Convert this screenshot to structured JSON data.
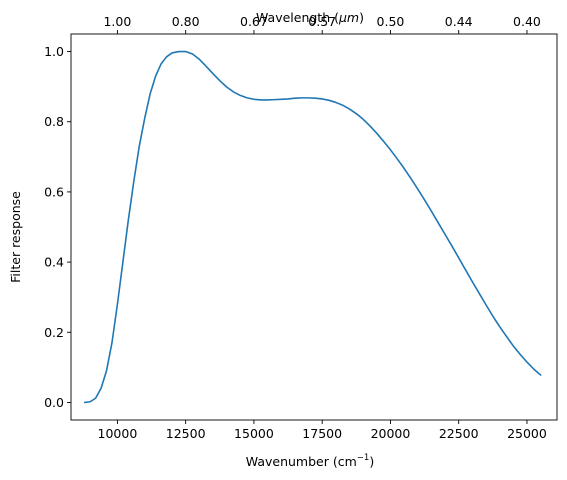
{
  "chart_data": {
    "type": "line",
    "title": "",
    "xlabel": "Wavenumber",
    "xlabel_unit": "(cm",
    "xlabel_unit_sup": "−1",
    "xlabel_unit_close": ")",
    "ylabel": "Filter response",
    "top_xlabel": "Wavelength (",
    "top_xlabel_unit": "μm",
    "top_xlabel_close": ")",
    "xlim": [
      8300,
      26100
    ],
    "ylim": [
      -0.05,
      1.05
    ],
    "xticks": [
      10000,
      12500,
      15000,
      17500,
      20000,
      22500,
      25000
    ],
    "xtick_labels": [
      "10000",
      "12500",
      "15000",
      "17500",
      "20000",
      "22500",
      "25000"
    ],
    "yticks": [
      0.0,
      0.2,
      0.4,
      0.6,
      0.8,
      1.0
    ],
    "ytick_labels": [
      "0.0",
      "0.2",
      "0.4",
      "0.6",
      "0.8",
      "1.0"
    ],
    "top_xticks": [
      10000,
      12500,
      15000,
      17500,
      20000,
      22500,
      25000
    ],
    "top_xtick_labels": [
      "1.00",
      "0.80",
      "0.67",
      "0.57",
      "0.50",
      "0.44",
      "0.40"
    ],
    "grid": false,
    "color": "#1f77b4",
    "series": [
      {
        "x": [
          8800,
          9000,
          9200,
          9400,
          9600,
          9800,
          10000,
          10200,
          10400,
          10600,
          10800,
          11000,
          11200,
          11400,
          11600,
          11800,
          12000,
          12250,
          12500,
          12750,
          13000,
          13250,
          13500,
          13750,
          14000,
          14250,
          14500,
          14750,
          15000,
          15250,
          15500,
          15750,
          16000,
          16250,
          16500,
          16750,
          17000,
          17250,
          17500,
          17750,
          18000,
          18250,
          18500,
          18750,
          19000,
          19250,
          19500,
          19750,
          20000,
          20250,
          20500,
          20750,
          21000,
          21250,
          21500,
          21750,
          22000,
          22250,
          22500,
          22750,
          23000,
          23250,
          23500,
          23750,
          24000,
          24250,
          24500,
          24750,
          25000,
          25250,
          25500
        ],
        "y": [
          0.0,
          0.002,
          0.012,
          0.04,
          0.09,
          0.17,
          0.28,
          0.4,
          0.52,
          0.63,
          0.73,
          0.81,
          0.88,
          0.93,
          0.965,
          0.985,
          0.996,
          1.0,
          1.0,
          0.993,
          0.978,
          0.958,
          0.937,
          0.917,
          0.899,
          0.885,
          0.875,
          0.868,
          0.864,
          0.862,
          0.862,
          0.863,
          0.864,
          0.865,
          0.867,
          0.868,
          0.868,
          0.867,
          0.865,
          0.861,
          0.855,
          0.847,
          0.836,
          0.823,
          0.807,
          0.788,
          0.767,
          0.744,
          0.72,
          0.694,
          0.667,
          0.638,
          0.608,
          0.577,
          0.545,
          0.512,
          0.479,
          0.446,
          0.412,
          0.378,
          0.344,
          0.311,
          0.278,
          0.246,
          0.216,
          0.188,
          0.161,
          0.137,
          0.115,
          0.095,
          0.078
        ]
      }
    ]
  }
}
